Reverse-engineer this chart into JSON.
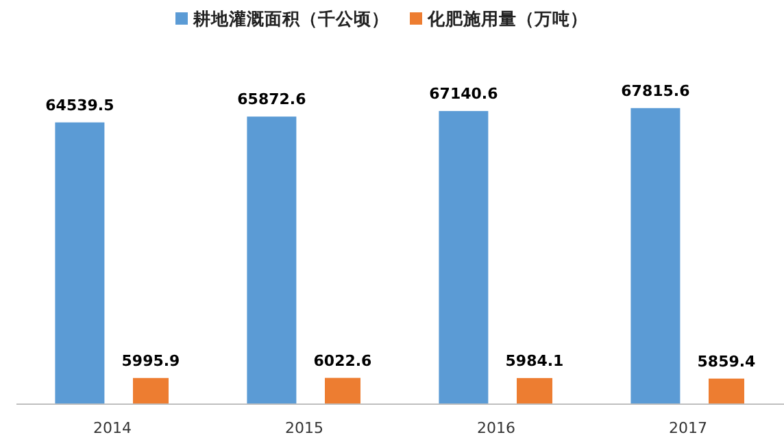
{
  "chart_data": {
    "type": "bar",
    "categories": [
      "2014",
      "2015",
      "2016",
      "2017"
    ],
    "series": [
      {
        "name": "耕地灌溉面积（千公顷）",
        "color": "#5b9bd5",
        "values": [
          64539.5,
          65872.6,
          67140.6,
          67815.6
        ]
      },
      {
        "name": "化肥施用量（万吨）",
        "color": "#ed7d31",
        "values": [
          5995.9,
          6022.6,
          5984.1,
          5859.4
        ]
      }
    ],
    "data_labels": true,
    "legend": "top"
  }
}
